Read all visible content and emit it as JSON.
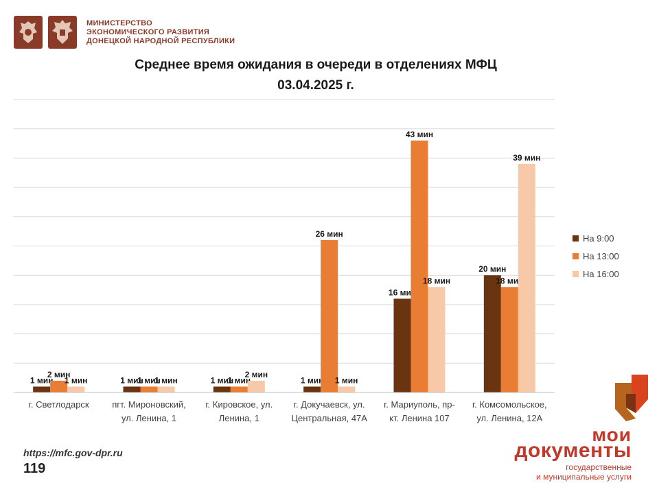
{
  "header": {
    "ministry_line1": "МИНИСТЕРСТВО",
    "ministry_line2": "ЭКОНОМИЧЕСКОГО РАЗВИТИЯ",
    "ministry_line3": "ДОНЕЦКОЙ НАРОДНОЙ РЕСПУБЛИКИ",
    "emblem_icons": [
      "coat-of-arms-russia-icon",
      "coat-of-arms-dpr-icon"
    ]
  },
  "chart_data": {
    "type": "bar",
    "title_line1": "Среднее время ожидания в очереди в отделениях МФЦ",
    "title_line2": "03.04.2025 г.",
    "categories": [
      [
        "г. Светлодарск"
      ],
      [
        "пгт. Мироновский,",
        "ул. Ленина, 1"
      ],
      [
        "г. Кировское, ул.",
        "Ленина, 1"
      ],
      [
        "г. Докучаевск, ул.",
        "Центральная, 47А"
      ],
      [
        "г. Мариуполь, пр-",
        "кт. Ленина 107"
      ],
      [
        "г. Комсомольское,",
        "ул. Ленина, 12А"
      ]
    ],
    "series": [
      {
        "name": "На 9:00",
        "color": "#6b3410",
        "values": [
          1,
          1,
          1,
          1,
          16,
          20
        ],
        "labels": [
          "1 мин",
          "1 мин",
          "1 мин",
          "1 мин",
          "16 мин",
          "20 мин"
        ]
      },
      {
        "name": "На 13:00",
        "color": "#e87d33",
        "values": [
          2,
          1,
          1,
          26,
          43,
          18
        ],
        "labels": [
          "2 мин",
          "1 мин",
          "1 мин",
          "26 мин",
          "43 мин",
          "18 мин"
        ]
      },
      {
        "name": "На 16:00",
        "color": "#f7c9a9",
        "values": [
          1,
          1,
          2,
          1,
          18,
          39
        ],
        "labels": [
          "1 мин",
          "1 мин",
          "2 мин",
          "1 мин",
          "18 мин",
          "39 мин"
        ]
      }
    ],
    "ylim": [
      0,
      50
    ],
    "grid": true,
    "legend_position": "right"
  },
  "footer": {
    "url": "https://mfc.gov-dpr.ru",
    "page_number": "119"
  },
  "brand": {
    "line1": "мои",
    "line2": "документы",
    "line3": "государственные",
    "line4": "и муниципальные услуги",
    "icon": "moi-dokumenty-logo-icon"
  }
}
